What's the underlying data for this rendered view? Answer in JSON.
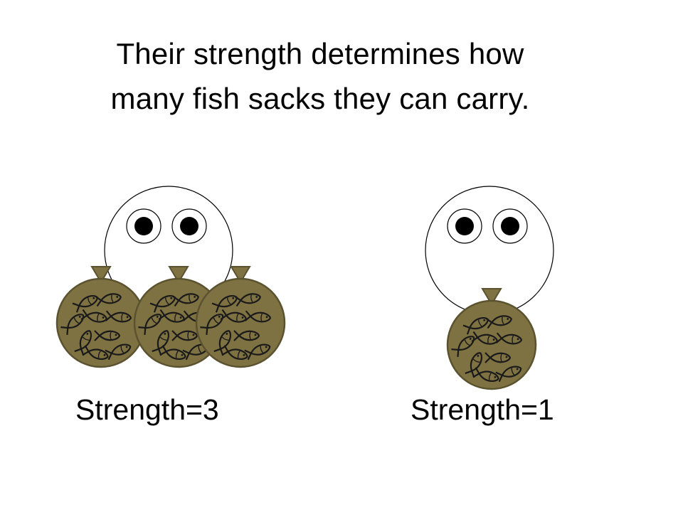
{
  "slide": {
    "title_line_1": "Their strength determines how",
    "title_line_2": "many fish sacks they can carry."
  },
  "characters": [
    {
      "label": "Strength=3",
      "sacks": 3
    },
    {
      "label": "Strength=1",
      "sacks": 1
    }
  ],
  "colors": {
    "background": "#ffffff",
    "outline": "#000000",
    "sack_fill": "#7f7242",
    "sack_dark": "#5b5230",
    "fish_stroke": "#1a1a1a"
  },
  "icons": {
    "character": "round-face-with-eyes",
    "sack": "fish-sack-icon"
  }
}
